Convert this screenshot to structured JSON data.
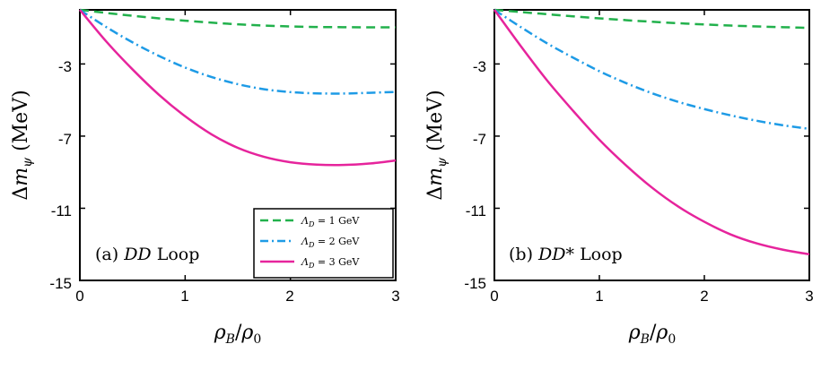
{
  "chart_data": [
    {
      "type": "line",
      "panel_label": "(a) DD Loop",
      "panel_label_prefix": "(a)",
      "panel_label_math": "DD",
      "panel_label_suffix": "Loop",
      "xlabel": "ρB/ρ0",
      "ylabel": "Δmψ (MeV)",
      "xlim": [
        0,
        3
      ],
      "ylim": [
        -15,
        0
      ],
      "xticks": [
        "0",
        "1",
        "2",
        "3"
      ],
      "yticks": [
        "-3",
        "-7",
        "-11",
        "-15"
      ],
      "grid": false,
      "legend_position": "bottom-right",
      "series": [
        {
          "name": "ΛD = 1 GeV",
          "name_math": "ΛD",
          "name_value": "= 1 GeV",
          "style": "dashed",
          "color": "#22b14c",
          "x": [
            0,
            0.25,
            0.5,
            0.75,
            1.0,
            1.25,
            1.5,
            1.75,
            2.0,
            2.25,
            2.5,
            2.75,
            3.0
          ],
          "y": [
            0,
            -0.17,
            -0.33,
            -0.47,
            -0.6,
            -0.71,
            -0.8,
            -0.87,
            -0.92,
            -0.95,
            -0.96,
            -0.97,
            -0.97
          ]
        },
        {
          "name": "ΛD = 2 GeV",
          "name_math": "ΛD",
          "name_value": "= 2 GeV",
          "style": "dashdot",
          "color": "#1e9be6",
          "x": [
            0,
            0.25,
            0.5,
            0.75,
            1.0,
            1.25,
            1.5,
            1.75,
            2.0,
            2.25,
            2.5,
            2.75,
            3.0
          ],
          "y": [
            0,
            -0.95,
            -1.8,
            -2.55,
            -3.2,
            -3.72,
            -4.12,
            -4.4,
            -4.56,
            -4.63,
            -4.64,
            -4.6,
            -4.55
          ]
        },
        {
          "name": "ΛD = 3 GeV",
          "name_math": "ΛD",
          "name_value": "= 3 GeV",
          "style": "solid",
          "color": "#e6249c",
          "x": [
            0,
            0.25,
            0.5,
            0.75,
            1.0,
            1.25,
            1.5,
            1.75,
            2.0,
            2.25,
            2.5,
            2.75,
            3.0
          ],
          "y": [
            0,
            -1.75,
            -3.3,
            -4.7,
            -5.9,
            -6.9,
            -7.65,
            -8.15,
            -8.45,
            -8.58,
            -8.6,
            -8.52,
            -8.35
          ]
        }
      ]
    },
    {
      "type": "line",
      "panel_label": "(b) DD* Loop",
      "panel_label_prefix": "(b)",
      "panel_label_math": "DD*",
      "panel_label_suffix": "Loop",
      "xlabel": "ρB/ρ0",
      "ylabel": "Δmψ (MeV)",
      "xlim": [
        0,
        3
      ],
      "ylim": [
        -15,
        0
      ],
      "xticks": [
        "0",
        "1",
        "2",
        "3"
      ],
      "yticks": [
        "-3",
        "-7",
        "-11",
        "-15"
      ],
      "grid": false,
      "series": [
        {
          "name": "ΛD = 1 GeV",
          "style": "dashed",
          "color": "#22b14c",
          "x": [
            0,
            0.25,
            0.5,
            0.75,
            1.0,
            1.25,
            1.5,
            1.75,
            2.0,
            2.25,
            2.5,
            2.75,
            3.0
          ],
          "y": [
            0,
            -0.12,
            -0.24,
            -0.36,
            -0.47,
            -0.57,
            -0.66,
            -0.74,
            -0.81,
            -0.87,
            -0.92,
            -0.96,
            -1.0
          ]
        },
        {
          "name": "ΛD = 2 GeV",
          "style": "dashdot",
          "color": "#1e9be6",
          "x": [
            0,
            0.25,
            0.5,
            0.75,
            1.0,
            1.25,
            1.5,
            1.75,
            2.0,
            2.25,
            2.5,
            2.75,
            3.0
          ],
          "y": [
            0,
            -0.95,
            -1.85,
            -2.65,
            -3.4,
            -4.05,
            -4.62,
            -5.1,
            -5.5,
            -5.85,
            -6.15,
            -6.4,
            -6.6
          ]
        },
        {
          "name": "ΛD = 3 GeV",
          "style": "solid",
          "color": "#e6249c",
          "x": [
            0,
            0.25,
            0.5,
            0.75,
            1.0,
            1.25,
            1.5,
            1.75,
            2.0,
            2.25,
            2.5,
            2.75,
            3.0
          ],
          "y": [
            0,
            -2.0,
            -3.9,
            -5.6,
            -7.2,
            -8.6,
            -9.85,
            -10.9,
            -11.75,
            -12.45,
            -12.95,
            -13.3,
            -13.55
          ]
        }
      ]
    }
  ]
}
